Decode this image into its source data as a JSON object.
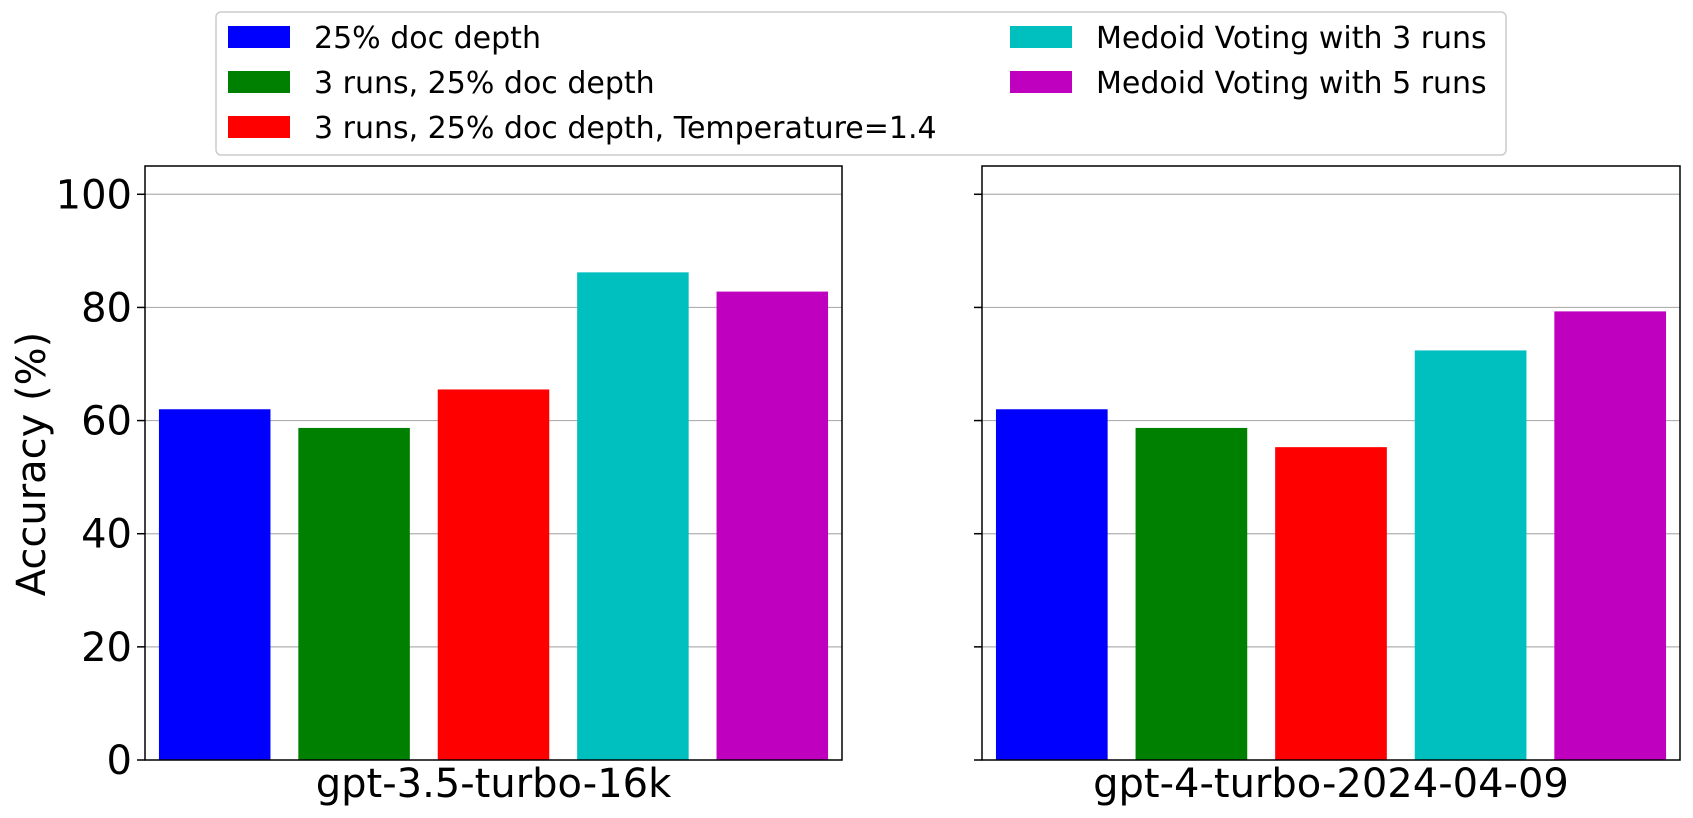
{
  "chart_data": {
    "type": "bar",
    "ylabel": "Accuracy (%)",
    "ylim": [
      0,
      105
    ],
    "yticks": [
      0,
      20,
      40,
      60,
      80,
      100
    ],
    "grid": true,
    "legend_placement": "top-center",
    "series": [
      {
        "name": "25% doc depth",
        "color": "#0000ff"
      },
      {
        "name": "3 runs, 25% doc depth",
        "color": "#008000"
      },
      {
        "name": "3 runs, 25% doc depth, Temperature=1.4",
        "color": "#ff0000"
      },
      {
        "name": "Medoid Voting with 3 runs",
        "color": "#00bfbf"
      },
      {
        "name": "Medoid Voting with 5 runs",
        "color": "#bf00bf"
      }
    ],
    "panels": [
      {
        "xlabel": "gpt-3.5-turbo-16k",
        "values": [
          62,
          58.7,
          65.5,
          86.2,
          82.8
        ]
      },
      {
        "xlabel": "gpt-4-turbo-2024-04-09",
        "values": [
          62,
          58.7,
          55.3,
          72.4,
          79.3
        ]
      }
    ]
  }
}
